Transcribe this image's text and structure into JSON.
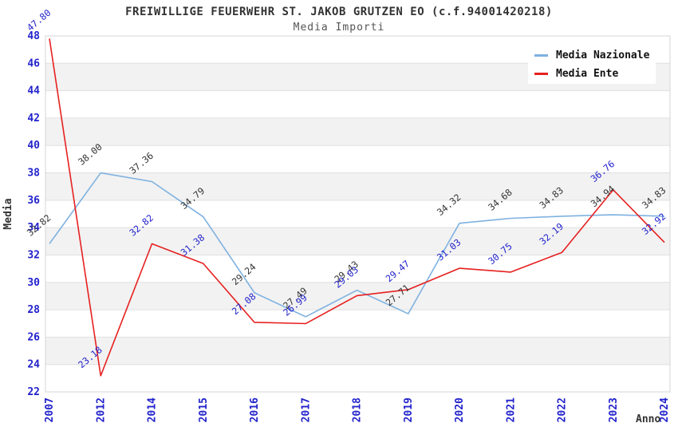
{
  "chart_data": {
    "type": "line",
    "title": "FREIWILLIGE FEUERWEHR ST. JAKOB GRUTZEN EO (c.f.94001420218)",
    "subtitle": "Media Importi",
    "xlabel": "Anno",
    "ylabel": "Media",
    "ylim": [
      22,
      48
    ],
    "ytick_step": 2,
    "grid": true,
    "legend_position": "top-right",
    "band_colors": [
      "#ffffff",
      "#f2f2f2"
    ],
    "gridline_color": "#e0e0e0",
    "border_color": "#d4d4d4",
    "axis_tick_color": "#2222cc",
    "axis_title_color": "#333333",
    "categories": [
      "2007",
      "2012",
      "2014",
      "2015",
      "2016",
      "2017",
      "2018",
      "2019",
      "2020",
      "2021",
      "2022",
      "2023",
      "2024"
    ],
    "series": [
      {
        "name": "Media Nazionale",
        "color": "#7eb1e0",
        "label_color": "#333333",
        "values": [
          32.82,
          38.0,
          37.36,
          34.79,
          29.24,
          27.49,
          29.43,
          27.71,
          34.32,
          34.68,
          34.83,
          34.94,
          34.83
        ]
      },
      {
        "name": "Media Ente",
        "color": "#e62020",
        "label_color": "#2222cc",
        "values": [
          47.8,
          23.18,
          32.82,
          31.38,
          27.08,
          26.99,
          29.03,
          29.47,
          31.03,
          30.75,
          32.19,
          36.76,
          32.92
        ]
      }
    ]
  }
}
